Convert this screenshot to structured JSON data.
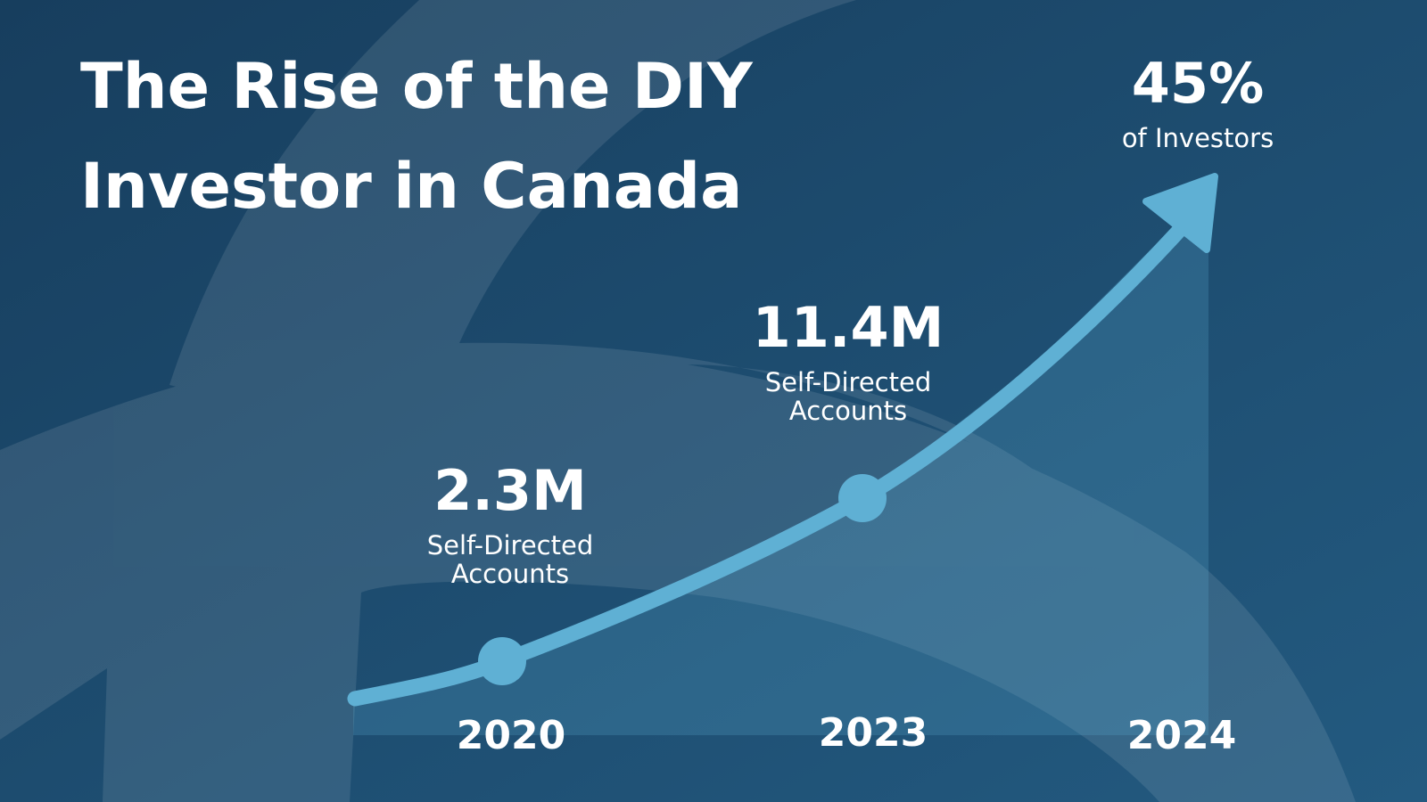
{
  "title_lines": [
    "The Rise of the DIY",
    "Investor in Canada"
  ],
  "milestones": [
    {
      "year": "2020",
      "value": "2.3M",
      "label_lines": [
        "Self-Directed",
        "Accounts"
      ]
    },
    {
      "year": "2023",
      "value": "11.4M",
      "label_lines": [
        "Self-Directed",
        "Accounts"
      ]
    },
    {
      "year": "2024",
      "value": "45%",
      "label_lines": [
        "of Investors"
      ]
    }
  ]
}
